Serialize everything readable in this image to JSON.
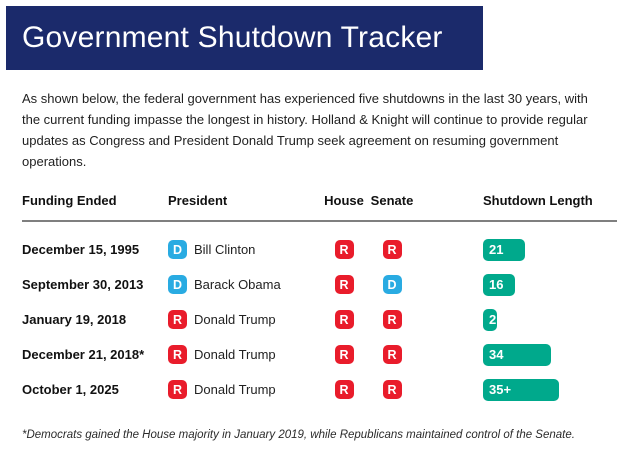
{
  "header": {
    "title": "Government Shutdown Tracker"
  },
  "intro": {
    "text": "As shown below, the federal government has experienced five shutdowns in the last 30 years, with the current funding impasse the longest in history. Holland & Knight will continue to provide regular updates as Congress and President Donald Trump seek agreement on resuming government operations."
  },
  "table": {
    "columns": [
      "Funding Ended",
      "President",
      "House",
      "Senate",
      "Shutdown Length"
    ],
    "rows": [
      {
        "funding_ended": "December 15, 1995",
        "president_party": "D",
        "president": "Bill Clinton",
        "house": "R",
        "senate": "R",
        "length_label": "21",
        "length_days": 21
      },
      {
        "funding_ended": "September 30, 2013",
        "president_party": "D",
        "president": "Barack Obama",
        "house": "R",
        "senate": "D",
        "length_label": "16",
        "length_days": 16
      },
      {
        "funding_ended": "January 19, 2018",
        "president_party": "R",
        "president": "Donald Trump",
        "house": "R",
        "senate": "R",
        "length_label": "2",
        "length_days": 2
      },
      {
        "funding_ended": "December 21, 2018*",
        "president_party": "R",
        "president": "Donald Trump",
        "house": "R",
        "senate": "R",
        "length_label": "34",
        "length_days": 34
      },
      {
        "funding_ended": "October 1, 2025",
        "president_party": "R",
        "president": "Donald Trump",
        "house": "R",
        "senate": "R",
        "length_label": "35+",
        "length_days": 35
      }
    ]
  },
  "footnote": {
    "text": "*Democrats gained the House majority in January 2019, while Republicans maintained control of the Senate."
  },
  "colors": {
    "banner_navy": "#1b2a6b",
    "democrat_blue": "#29abe2",
    "republican_red": "#e91c2b",
    "bar_teal": "#00a98c"
  },
  "chart_data": {
    "type": "bar",
    "orientation": "horizontal",
    "title": "Government Shutdown Tracker",
    "categories": [
      "December 15, 1995",
      "September 30, 2013",
      "January 19, 2018",
      "December 21, 2018*",
      "October 1, 2025"
    ],
    "values": [
      21,
      16,
      2,
      34,
      35
    ],
    "value_labels": [
      "21",
      "16",
      "2",
      "34",
      "35+"
    ],
    "series_name": "Shutdown Length (days)",
    "bar_color": "#00a98c",
    "grid": false,
    "legend": false
  }
}
